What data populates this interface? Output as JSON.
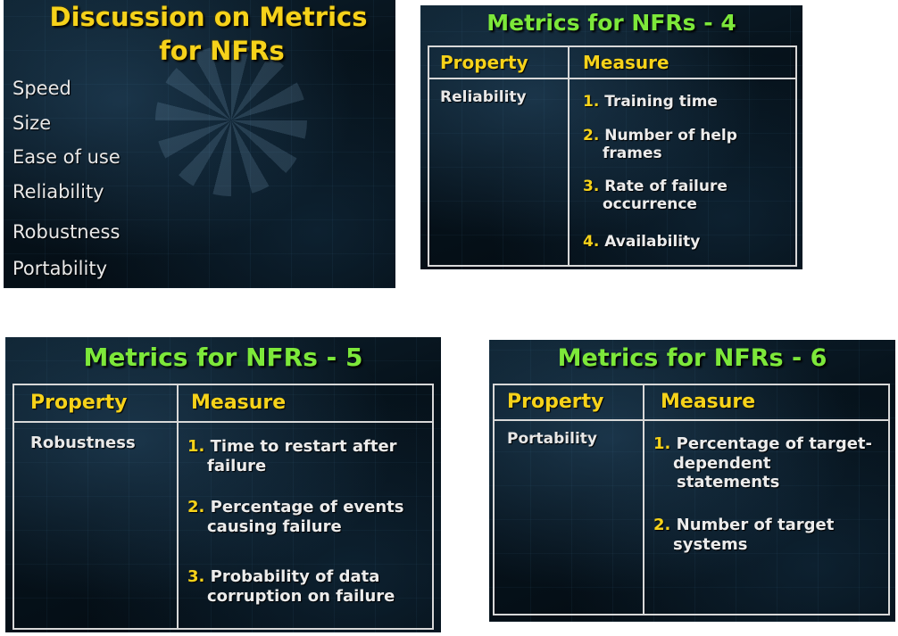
{
  "slide1": {
    "title_line1": "Discussion on Metrics",
    "title_line2": "for NFRs",
    "items": [
      "Speed",
      "Size",
      "Ease of use",
      "Reliability",
      "Robustness",
      "Portability"
    ]
  },
  "slide2": {
    "title": "Metrics for NFRs - 4",
    "header_property": "Property",
    "header_measure": "Measure",
    "property": "Reliability",
    "measures": [
      {
        "num": "1.",
        "line1": "Training time",
        "line2": ""
      },
      {
        "num": "2.",
        "line1": "Number of help",
        "line2": "frames"
      },
      {
        "num": "3.",
        "line1": "Rate of failure",
        "line2": "occurrence"
      },
      {
        "num": "4.",
        "line1": "Availability",
        "line2": ""
      }
    ]
  },
  "slide3": {
    "title": "Metrics for NFRs - 5",
    "header_property": "Property",
    "header_measure": "Measure",
    "property": "Robustness",
    "measures": [
      {
        "num": "1.",
        "line1": "Time to restart after",
        "line2": "failure"
      },
      {
        "num": "2.",
        "line1": "Percentage of events",
        "line2": "causing failure"
      },
      {
        "num": "3.",
        "line1": "Probability of data",
        "line2": "corruption on failure"
      }
    ]
  },
  "slide4": {
    "title": "Metrics for NFRs - 6",
    "header_property": "Property",
    "header_measure": "Measure",
    "property": "Portability",
    "measures": [
      {
        "num": "1.",
        "line1": "Percentage of target-",
        "line2": "dependent",
        "line3": "statements"
      },
      {
        "num": "2.",
        "line1": "Number of target",
        "line2": "systems",
        "line3": ""
      }
    ]
  }
}
